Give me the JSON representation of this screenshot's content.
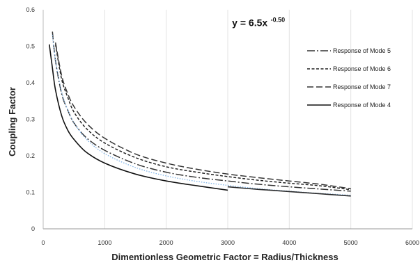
{
  "chart_data": {
    "type": "line",
    "xlabel": "Dimentionless Geometric Factor = Radius/Thickness",
    "ylabel": "Coupling Factor",
    "xlim": [
      0,
      6000
    ],
    "ylim": [
      0,
      0.6
    ],
    "xticks": [
      "0",
      "1000",
      "2000",
      "3000",
      "4000",
      "5000",
      "6000"
    ],
    "yticks": [
      "0",
      "0.1",
      "0.2",
      "0.3",
      "0.4",
      "0.5",
      "0.6"
    ],
    "grid": "vertical",
    "legend_position": "right",
    "annotation": {
      "text_base": "y = 6.5x",
      "text_exp": "-0.50",
      "x": 3500,
      "y": 0.555
    },
    "series": [
      {
        "name": "Response of Mode 5",
        "dash": "dashdot",
        "color": "#333333",
        "x": [
          150,
          200,
          300,
          400,
          500,
          700,
          1000,
          1500,
          2000,
          2500,
          3000,
          3500,
          4000,
          4500,
          5000
        ],
        "y": [
          0.54,
          0.46,
          0.37,
          0.325,
          0.29,
          0.25,
          0.215,
          0.178,
          0.155,
          0.141,
          0.131,
          0.122,
          0.115,
          0.109,
          0.103
        ]
      },
      {
        "name": "Response of Mode 6",
        "dash": "dash",
        "color": "#222222",
        "x": [
          200,
          300,
          400,
          500,
          700,
          1000,
          1500,
          2000,
          2500,
          3000,
          3500,
          4000,
          4500,
          5000
        ],
        "y": [
          0.505,
          0.41,
          0.36,
          0.32,
          0.275,
          0.235,
          0.195,
          0.17,
          0.155,
          0.143,
          0.133,
          0.125,
          0.118,
          0.107
        ]
      },
      {
        "name": "Response of Mode 7",
        "dash": "longdash",
        "color": "#333333",
        "x": [
          200,
          300,
          400,
          500,
          700,
          1000,
          1500,
          2000,
          2500,
          3000,
          3500,
          4000,
          4500,
          5000
        ],
        "y": [
          0.51,
          0.42,
          0.37,
          0.335,
          0.29,
          0.248,
          0.205,
          0.18,
          0.163,
          0.15,
          0.14,
          0.131,
          0.122,
          0.11
        ]
      },
      {
        "name": "Response of Mode 4",
        "dash": "solid",
        "color": "#111111",
        "x": [
          100,
          150,
          200,
          300,
          400,
          500,
          700,
          1000,
          1500,
          2000,
          2500,
          3000
        ],
        "y": [
          0.505,
          0.44,
          0.38,
          0.31,
          0.27,
          0.245,
          0.21,
          0.18,
          0.15,
          0.131,
          0.118,
          0.106
        ]
      },
      {
        "name": "",
        "dash": "dot",
        "color": "#7fb3e6",
        "x": [
          150,
          200,
          300,
          400,
          500,
          700,
          1000,
          1500,
          2000,
          2500,
          3000,
          3500,
          4000,
          4500,
          5000
        ],
        "y": [
          0.531,
          0.46,
          0.375,
          0.325,
          0.291,
          0.246,
          0.206,
          0.168,
          0.145,
          0.13,
          0.119,
          0.11,
          0.103,
          0.097,
          0.092
        ]
      },
      {
        "name": "",
        "dash": "solid",
        "color": "#2a2a2a",
        "x": [
          3000,
          3500,
          4000,
          4500,
          5000
        ],
        "y": [
          0.115,
          0.108,
          0.102,
          0.096,
          0.09
        ]
      }
    ]
  }
}
